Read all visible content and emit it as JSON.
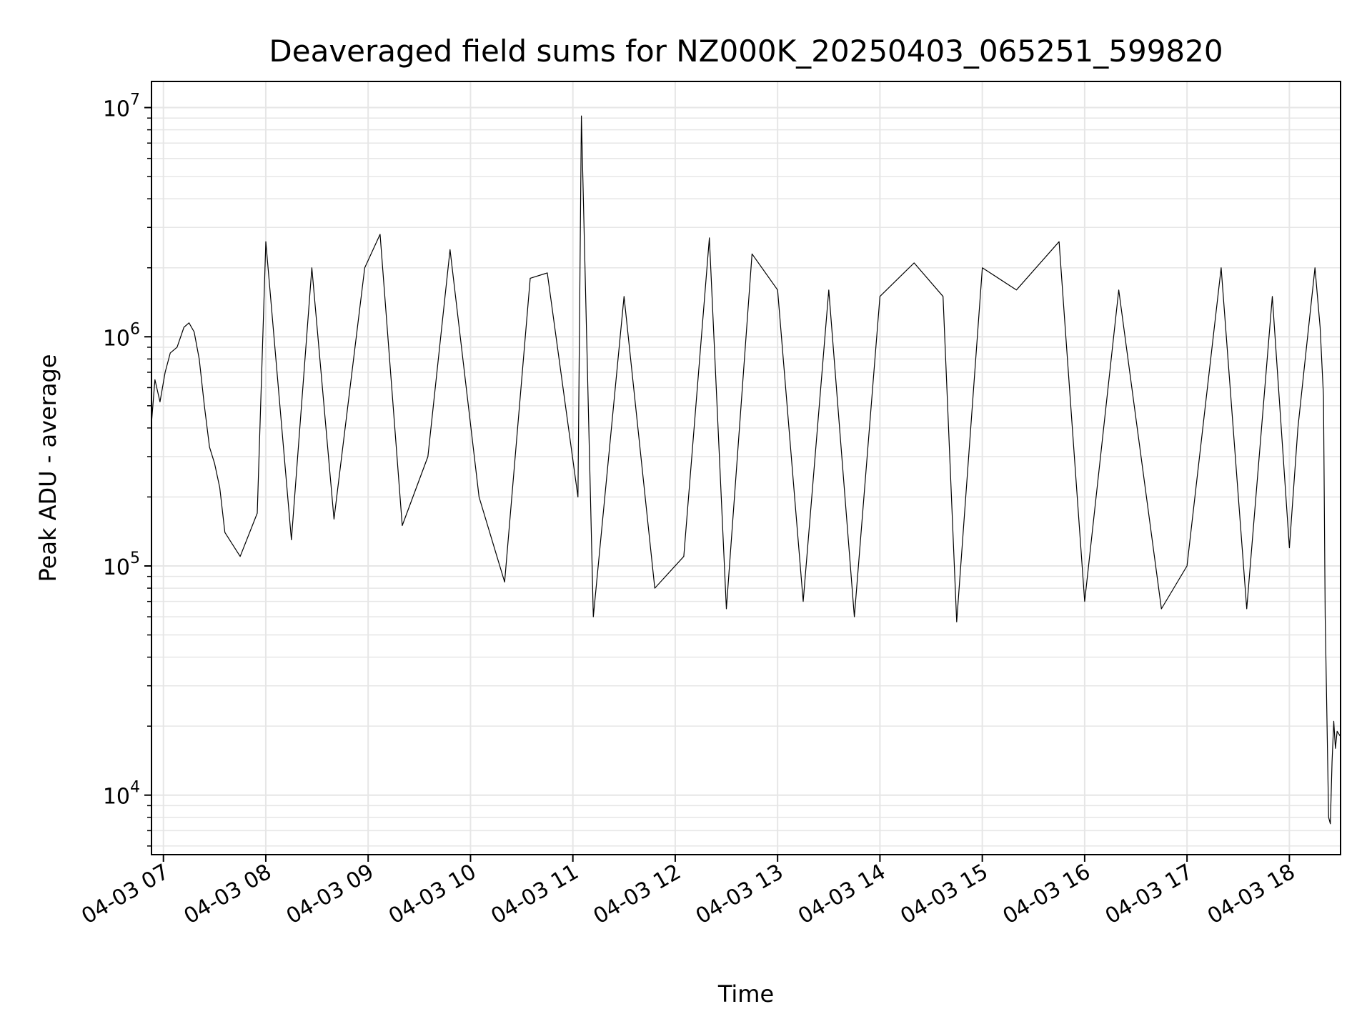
{
  "chart_data": {
    "type": "line",
    "title": "Deaveraged field sums for NZ000K_20250403_065251_599820",
    "xlabel": "Time",
    "ylabel": "Peak ADU - average",
    "x_scale": "time",
    "y_scale": "log",
    "xlim": [
      "2025-04-03T06:53:00",
      "2025-04-03T18:30:00"
    ],
    "ylim": [
      5500,
      13000000
    ],
    "grid": true,
    "line_color": "#000000",
    "grid_color": "#e6e6e6",
    "x_ticks": [
      {
        "t": "2025-04-03T07:00:00",
        "label": "04-03 07"
      },
      {
        "t": "2025-04-03T08:00:00",
        "label": "04-03 08"
      },
      {
        "t": "2025-04-03T09:00:00",
        "label": "04-03 09"
      },
      {
        "t": "2025-04-03T10:00:00",
        "label": "04-03 10"
      },
      {
        "t": "2025-04-03T11:00:00",
        "label": "04-03 11"
      },
      {
        "t": "2025-04-03T12:00:00",
        "label": "04-03 12"
      },
      {
        "t": "2025-04-03T13:00:00",
        "label": "04-03 13"
      },
      {
        "t": "2025-04-03T14:00:00",
        "label": "04-03 14"
      },
      {
        "t": "2025-04-03T15:00:00",
        "label": "04-03 15"
      },
      {
        "t": "2025-04-03T16:00:00",
        "label": "04-03 16"
      },
      {
        "t": "2025-04-03T17:00:00",
        "label": "04-03 17"
      },
      {
        "t": "2025-04-03T18:00:00",
        "label": "04-03 18"
      }
    ],
    "y_ticks": [
      {
        "value": 10000,
        "base": "10",
        "exp": "4"
      },
      {
        "value": 100000,
        "base": "10",
        "exp": "5"
      },
      {
        "value": 1000000,
        "base": "10",
        "exp": "6"
      },
      {
        "value": 10000000,
        "base": "10",
        "exp": "7"
      }
    ],
    "series": [
      {
        "points": [
          [
            "2025-04-03T06:53:00",
            420000
          ],
          [
            "2025-04-03T06:55:00",
            650000
          ],
          [
            "2025-04-03T06:58:00",
            520000
          ],
          [
            "2025-04-03T07:01:00",
            700000
          ],
          [
            "2025-04-03T07:04:00",
            850000
          ],
          [
            "2025-04-03T07:08:00",
            900000
          ],
          [
            "2025-04-03T07:12:00",
            1100000
          ],
          [
            "2025-04-03T07:15:00",
            1150000
          ],
          [
            "2025-04-03T07:18:00",
            1050000
          ],
          [
            "2025-04-03T07:21:00",
            800000
          ],
          [
            "2025-04-03T07:24:00",
            500000
          ],
          [
            "2025-04-03T07:27:00",
            330000
          ],
          [
            "2025-04-03T07:30:00",
            280000
          ],
          [
            "2025-04-03T07:33:00",
            220000
          ],
          [
            "2025-04-03T07:36:00",
            140000
          ],
          [
            "2025-04-03T07:45:00",
            110000
          ],
          [
            "2025-04-03T07:55:00",
            170000
          ],
          [
            "2025-04-03T08:00:00",
            2600000
          ],
          [
            "2025-04-03T08:15:00",
            130000
          ],
          [
            "2025-04-03T08:27:00",
            2000000
          ],
          [
            "2025-04-03T08:40:00",
            160000
          ],
          [
            "2025-04-03T08:58:00",
            2000000
          ],
          [
            "2025-04-03T09:07:00",
            2800000
          ],
          [
            "2025-04-03T09:20:00",
            150000
          ],
          [
            "2025-04-03T09:35:00",
            300000
          ],
          [
            "2025-04-03T09:48:00",
            2400000
          ],
          [
            "2025-04-03T10:05:00",
            200000
          ],
          [
            "2025-04-03T10:20:00",
            85000
          ],
          [
            "2025-04-03T10:35:00",
            1800000
          ],
          [
            "2025-04-03T10:45:00",
            1900000
          ],
          [
            "2025-04-03T11:03:00",
            200000
          ],
          [
            "2025-04-03T11:05:00",
            9200000
          ],
          [
            "2025-04-03T11:12:00",
            60000
          ],
          [
            "2025-04-03T11:30:00",
            1500000
          ],
          [
            "2025-04-03T11:48:00",
            80000
          ],
          [
            "2025-04-03T12:05:00",
            110000
          ],
          [
            "2025-04-03T12:20:00",
            2700000
          ],
          [
            "2025-04-03T12:30:00",
            65000
          ],
          [
            "2025-04-03T12:45:00",
            2300000
          ],
          [
            "2025-04-03T13:00:00",
            1600000
          ],
          [
            "2025-04-03T13:15:00",
            70000
          ],
          [
            "2025-04-03T13:30:00",
            1600000
          ],
          [
            "2025-04-03T13:45:00",
            60000
          ],
          [
            "2025-04-03T14:00:00",
            1500000
          ],
          [
            "2025-04-03T14:20:00",
            2100000
          ],
          [
            "2025-04-03T14:37:00",
            1500000
          ],
          [
            "2025-04-03T14:45:00",
            57000
          ],
          [
            "2025-04-03T15:00:00",
            2000000
          ],
          [
            "2025-04-03T15:20:00",
            1600000
          ],
          [
            "2025-04-03T15:45:00",
            2600000
          ],
          [
            "2025-04-03T16:00:00",
            70000
          ],
          [
            "2025-04-03T16:20:00",
            1600000
          ],
          [
            "2025-04-03T16:45:00",
            65000
          ],
          [
            "2025-04-03T17:00:00",
            100000
          ],
          [
            "2025-04-03T17:20:00",
            2000000
          ],
          [
            "2025-04-03T17:35:00",
            65000
          ],
          [
            "2025-04-03T17:50:00",
            1500000
          ],
          [
            "2025-04-03T18:00:00",
            120000
          ],
          [
            "2025-04-03T18:05:00",
            400000
          ],
          [
            "2025-04-03T18:10:00",
            900000
          ],
          [
            "2025-04-03T18:15:00",
            2000000
          ],
          [
            "2025-04-03T18:18:00",
            1100000
          ],
          [
            "2025-04-03T18:20:00",
            550000
          ],
          [
            "2025-04-03T18:21:00",
            60000
          ],
          [
            "2025-04-03T18:22:00",
            22000
          ],
          [
            "2025-04-03T18:23:00",
            8000
          ],
          [
            "2025-04-03T18:24:00",
            7500
          ],
          [
            "2025-04-03T18:25:00",
            14000
          ],
          [
            "2025-04-03T18:26:00",
            21000
          ],
          [
            "2025-04-03T18:27:00",
            16000
          ],
          [
            "2025-04-03T18:28:00",
            19000
          ],
          [
            "2025-04-03T18:30:00",
            18000
          ]
        ]
      }
    ]
  }
}
